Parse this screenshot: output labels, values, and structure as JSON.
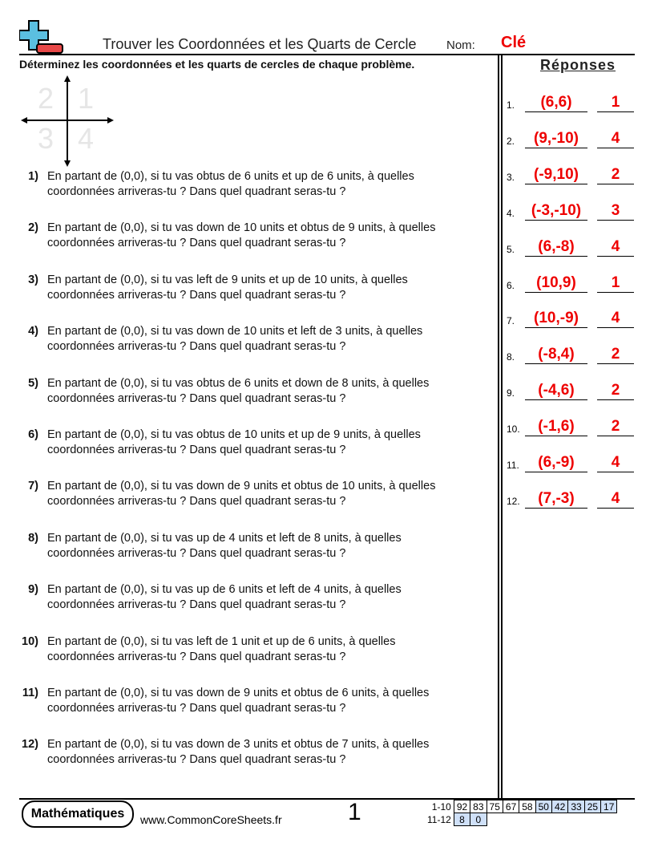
{
  "header": {
    "title": "Trouver les Coordonnées et les Quarts de Cercle",
    "name_label": "Nom:",
    "name_value": "Clé"
  },
  "instructions": "Déterminez les coordonnées et les quarts de cercles de chaque problème.",
  "quadrant_labels": [
    "2",
    "1",
    "3",
    "4"
  ],
  "questions": [
    {
      "num": "1)",
      "line1": "En partant de (0,0), si tu vas obtus de 6 units et up de 6 units, à quelles",
      "line2": "coordonnées arriveras-tu ? Dans quel quadrant seras-tu ?"
    },
    {
      "num": "2)",
      "line1": "En partant de (0,0), si tu vas down de 10 units et obtus de 9 units, à quelles",
      "line2": "coordonnées arriveras-tu ? Dans quel quadrant seras-tu ?"
    },
    {
      "num": "3)",
      "line1": "En partant de (0,0), si tu vas left de 9 units et up de 10 units, à quelles",
      "line2": "coordonnées arriveras-tu ? Dans quel quadrant seras-tu ?"
    },
    {
      "num": "4)",
      "line1": "En partant de (0,0), si tu vas down de 10 units et left de 3 units, à quelles",
      "line2": "coordonnées arriveras-tu ? Dans quel quadrant seras-tu ?"
    },
    {
      "num": "5)",
      "line1": "En partant de (0,0), si tu vas obtus de 6 units et down de 8 units, à quelles",
      "line2": "coordonnées arriveras-tu ? Dans quel quadrant seras-tu ?"
    },
    {
      "num": "6)",
      "line1": "En partant de (0,0), si tu vas obtus de 10 units et up de 9 units, à quelles",
      "line2": "coordonnées arriveras-tu ? Dans quel quadrant seras-tu ?"
    },
    {
      "num": "7)",
      "line1": "En partant de (0,0), si tu vas down de 9 units et obtus de 10 units, à quelles",
      "line2": "coordonnées arriveras-tu ? Dans quel quadrant seras-tu ?"
    },
    {
      "num": "8)",
      "line1": "En partant de (0,0), si tu vas up de 4 units et left de 8 units, à quelles",
      "line2": "coordonnées arriveras-tu ? Dans quel quadrant seras-tu ?"
    },
    {
      "num": "9)",
      "line1": "En partant de (0,0), si tu vas up de 6 units et left de 4 units, à quelles",
      "line2": "coordonnées arriveras-tu ? Dans quel quadrant seras-tu ?"
    },
    {
      "num": "10)",
      "line1": "En partant de (0,0), si tu vas left de 1 unit et up de 6 units, à quelles",
      "line2": "coordonnées arriveras-tu ? Dans quel quadrant seras-tu ?"
    },
    {
      "num": "11)",
      "line1": "En partant de (0,0), si tu vas down de 9 units et obtus de 6 units, à quelles",
      "line2": "coordonnées arriveras-tu ? Dans quel quadrant seras-tu ?"
    },
    {
      "num": "12)",
      "line1": "En partant de (0,0), si tu vas down de 3 units et obtus de 7 units, à quelles",
      "line2": "coordonnées arriveras-tu ? Dans quel quadrant seras-tu ?"
    }
  ],
  "answers_title": "Réponses",
  "answers": [
    {
      "num": "1.",
      "coord": "(6,6)",
      "quad": "1"
    },
    {
      "num": "2.",
      "coord": "(9,-10)",
      "quad": "4"
    },
    {
      "num": "3.",
      "coord": "(-9,10)",
      "quad": "2"
    },
    {
      "num": "4.",
      "coord": "(-3,-10)",
      "quad": "3"
    },
    {
      "num": "5.",
      "coord": "(6,-8)",
      "quad": "4"
    },
    {
      "num": "6.",
      "coord": "(10,9)",
      "quad": "1"
    },
    {
      "num": "7.",
      "coord": "(10,-9)",
      "quad": "4"
    },
    {
      "num": "8.",
      "coord": "(-8,4)",
      "quad": "2"
    },
    {
      "num": "9.",
      "coord": "(-4,6)",
      "quad": "2"
    },
    {
      "num": "10.",
      "coord": "(-1,6)",
      "quad": "2"
    },
    {
      "num": "11.",
      "coord": "(6,-9)",
      "quad": "4"
    },
    {
      "num": "12.",
      "coord": "(7,-3)",
      "quad": "4"
    }
  ],
  "footer": {
    "brand": "Mathématiques",
    "url": "www.CommonCoreSheets.fr",
    "page": "1",
    "score_rows": [
      {
        "label": "1-10",
        "values": [
          "92",
          "83",
          "75",
          "67",
          "58",
          "50",
          "42",
          "33",
          "25",
          "17"
        ]
      },
      {
        "label": "11-12",
        "values": [
          "8",
          "0"
        ]
      }
    ]
  },
  "colors": {
    "answer": "#e00000",
    "logo_plus": "#5bbfe0",
    "logo_minus": "#e84848",
    "score_highlight": "#cfe0f8"
  }
}
